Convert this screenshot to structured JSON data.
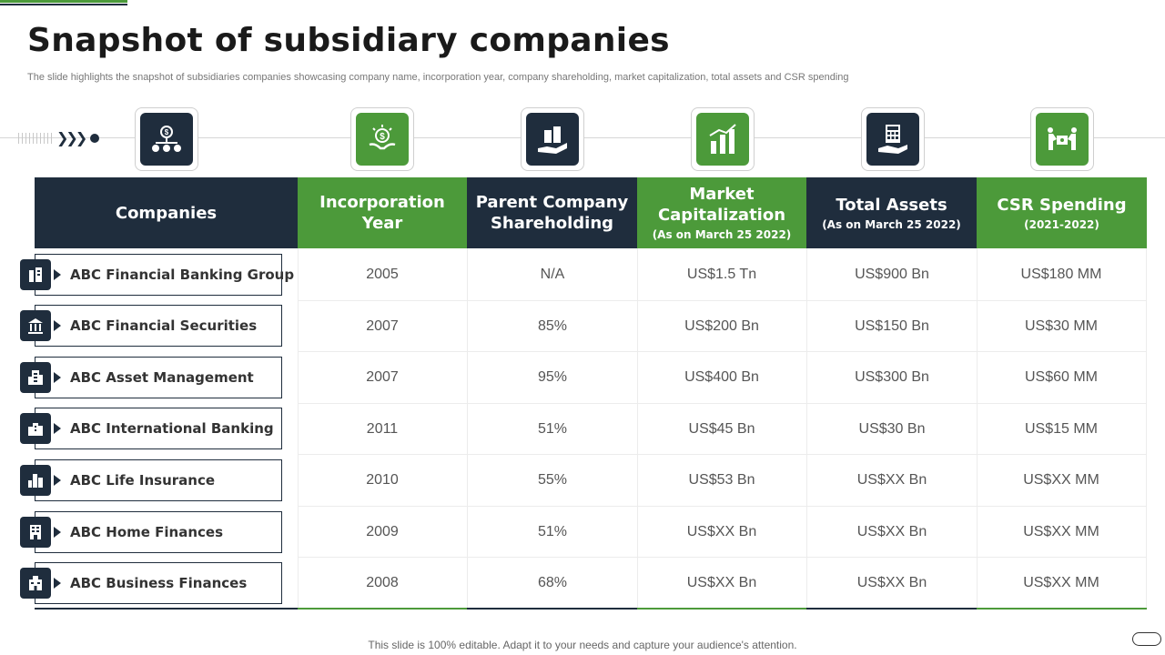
{
  "title": "Snapshot of subsidiary companies",
  "subtitle": "The slide highlights the snapshot of subsidiaries companies showcasing company name, incorporation year, company shareholding, market capitalization, total assets and CSR spending",
  "columns": [
    {
      "title": "Companies",
      "sub": "",
      "icon": "hierarchy-balance-icon",
      "color": "#1f2d3d"
    },
    {
      "title": "Incorporation Year",
      "sub": "",
      "icon": "hands-money-icon",
      "color": "#4c9a3a"
    },
    {
      "title": "Parent Company Shareholding",
      "sub": "",
      "icon": "hand-buildings-icon",
      "color": "#1f2d3d"
    },
    {
      "title": "Market Capitalization",
      "sub": "(As on March 25 2022)",
      "icon": "bar-chart-icon",
      "color": "#4c9a3a"
    },
    {
      "title": "Total Assets",
      "sub": "(As on March 25 2022)",
      "icon": "hand-calculator-icon",
      "color": "#1f2d3d"
    },
    {
      "title": "CSR Spending",
      "sub": "(2021-2022)",
      "icon": "people-puzzle-icon",
      "color": "#4c9a3a"
    }
  ],
  "rows": [
    {
      "company": "ABC Financial Banking Group",
      "icon": "office-buildings-icon",
      "year": "2005",
      "shareholding": "N/A",
      "market_cap": "US$1.5 Tn",
      "total_assets": "US$900 Bn",
      "csr": "US$180 MM"
    },
    {
      "company": "ABC Financial Securities",
      "icon": "bank-building-icon",
      "year": "2007",
      "shareholding": "85%",
      "market_cap": "US$200 Bn",
      "total_assets": "US$150 Bn",
      "csr": "US$30 MM"
    },
    {
      "company": "ABC Asset Management",
      "icon": "tower-building-icon",
      "year": "2007",
      "shareholding": "95%",
      "market_cap": "US$400 Bn",
      "total_assets": "US$300 Bn",
      "csr": "US$60 MM"
    },
    {
      "company": "ABC International Banking",
      "icon": "city-buildings-icon",
      "year": "2011",
      "shareholding": "51%",
      "market_cap": "US$45 Bn",
      "total_assets": "US$30 Bn",
      "csr": "US$15 MM"
    },
    {
      "company": "ABC Life Insurance",
      "icon": "skyline-icon",
      "year": "2010",
      "shareholding": "55%",
      "market_cap": "US$53 Bn",
      "total_assets": "US$XX Bn",
      "csr": "US$XX MM"
    },
    {
      "company": "ABC Home Finances",
      "icon": "apartment-building-icon",
      "year": "2009",
      "shareholding": "51%",
      "market_cap": "US$XX Bn",
      "total_assets": "US$XX Bn",
      "csr": "US$XX MM"
    },
    {
      "company": "ABC Business Finances",
      "icon": "business-building-icon",
      "year": "2008",
      "shareholding": "68%",
      "market_cap": "US$XX Bn",
      "total_assets": "US$XX Bn",
      "csr": "US$XX MM"
    }
  ],
  "footer": "This slide is 100% editable. Adapt it to your needs and capture your audience's attention."
}
